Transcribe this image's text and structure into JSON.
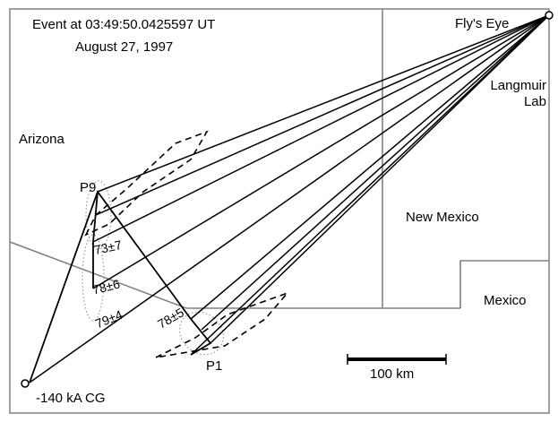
{
  "header": {
    "event_line": "Event at 03:49:50.0425597 UT",
    "date_line": "August 27, 1997"
  },
  "regions": {
    "arizona": "Arizona",
    "new_mexico": "New Mexico",
    "mexico": "Mexico"
  },
  "stations": {
    "flys_eye": "Fly's Eye",
    "langmuir_line1": "Langmuir",
    "langmuir_line2": "Lab"
  },
  "source": {
    "label": "-140 kA CG"
  },
  "points": {
    "p1": "P1",
    "p9": "P9"
  },
  "measurements": {
    "m1": "73±7",
    "m2": "78±6",
    "m3": "79±4",
    "m4": "78±5"
  },
  "scale_bar": {
    "label": "100 km"
  },
  "colors": {
    "border": "#808080",
    "ink": "#000000",
    "halo": "#999999"
  }
}
